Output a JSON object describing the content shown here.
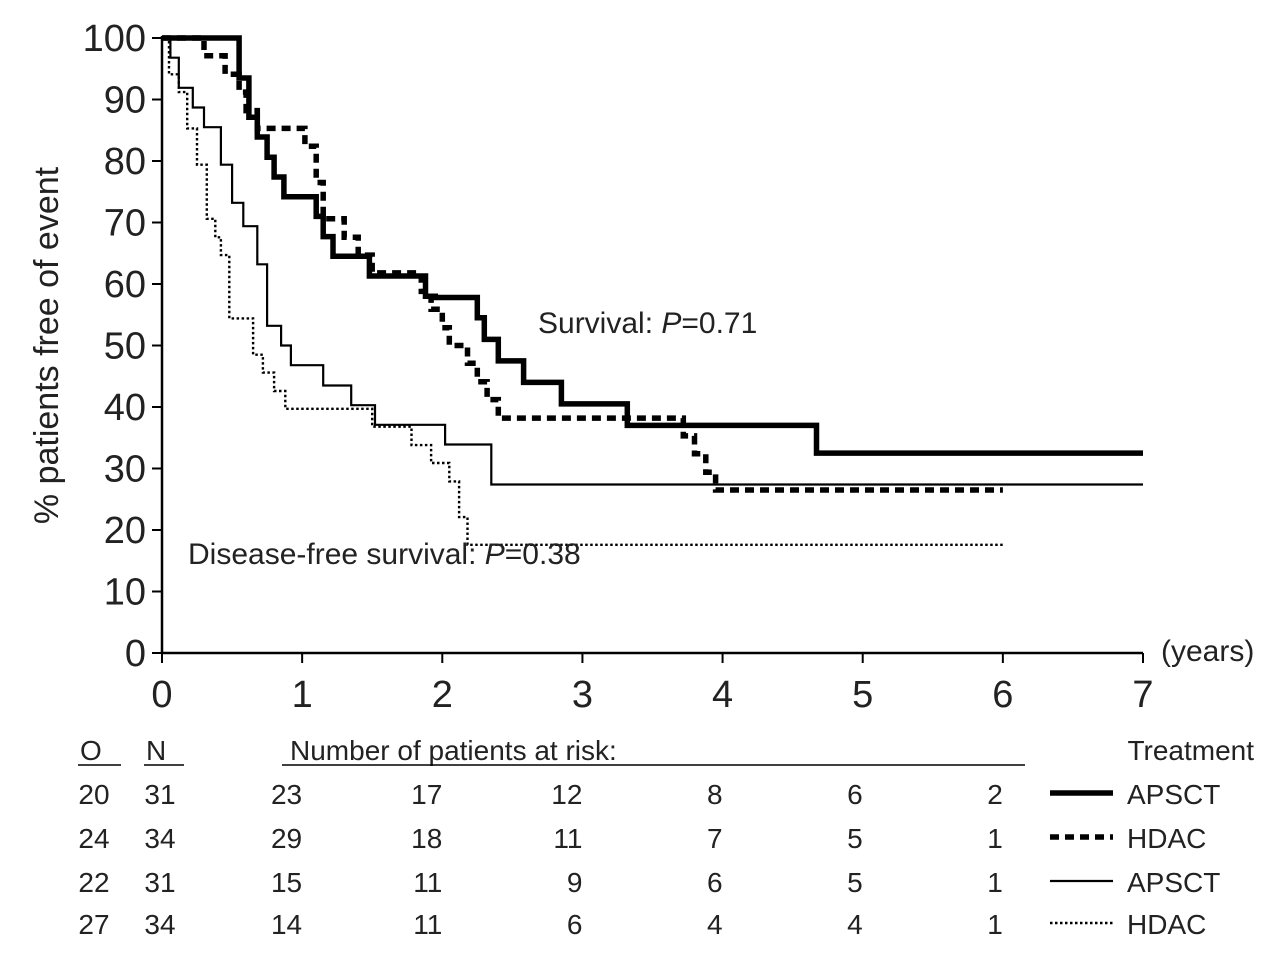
{
  "chart_data": {
    "type": "line",
    "title": "",
    "xlabel": "(years)",
    "ylabel": "% patients free of event",
    "xlim": [
      0,
      7
    ],
    "ylim": [
      0,
      100
    ],
    "xticks": [
      "0",
      "1",
      "2",
      "3",
      "4",
      "5",
      "6",
      "7"
    ],
    "yticks": [
      "0",
      "10",
      "20",
      "30",
      "40",
      "50",
      "60",
      "70",
      "80",
      "90",
      "100"
    ],
    "annotations": {
      "survival": {
        "label": "Survival: ",
        "p_symbol": "P",
        "p_value": "=0.71"
      },
      "dfs": {
        "label": "Disease-free survival: ",
        "p_symbol": "P",
        "p_value": "=0.38"
      }
    },
    "series": [
      {
        "name": "APSCT",
        "endpoint": "Survival",
        "style": "thick-solid",
        "color": "#000000",
        "x": [
          0,
          0.55,
          0.55,
          0.62,
          0.62,
          0.68,
          0.68,
          0.75,
          0.75,
          0.8,
          0.8,
          0.87,
          0.87,
          1.1,
          1.1,
          1.15,
          1.15,
          1.22,
          1.22,
          1.48,
          1.48,
          1.88,
          1.88,
          1.95,
          1.95,
          2.25,
          2.25,
          2.3,
          2.3,
          2.4,
          2.4,
          2.58,
          2.58,
          2.85,
          2.85,
          3.32,
          3.32,
          4.67,
          4.67,
          7.0
        ],
        "y": [
          100,
          100,
          93.5,
          93.5,
          87.1,
          87.1,
          83.9,
          83.9,
          80.6,
          80.6,
          77.4,
          77.4,
          74.2,
          74.2,
          71,
          71,
          67.7,
          67.7,
          64.5,
          64.5,
          61.3,
          61.3,
          58,
          58,
          57.8,
          57.8,
          54.5,
          54.5,
          51,
          51,
          47.5,
          47.5,
          44,
          44,
          40.5,
          40.5,
          37,
          37,
          32.5,
          32.5
        ]
      },
      {
        "name": "HDAC",
        "endpoint": "Survival",
        "style": "thick-dashed",
        "color": "#000000",
        "x": [
          0,
          0.3,
          0.3,
          0.45,
          0.45,
          0.55,
          0.55,
          0.6,
          0.6,
          0.68,
          0.68,
          0.8,
          0.8,
          1.02,
          1.02,
          1.1,
          1.1,
          1.15,
          1.15,
          1.3,
          1.3,
          1.4,
          1.4,
          1.5,
          1.5,
          1.7,
          1.7,
          1.85,
          1.85,
          1.92,
          1.92,
          2.0,
          2.0,
          2.05,
          2.05,
          2.12,
          2.12,
          2.18,
          2.18,
          2.25,
          2.25,
          2.32,
          2.32,
          2.4,
          2.4,
          2.5,
          2.5,
          3.72,
          3.72,
          3.8,
          3.8,
          3.88,
          3.88,
          3.95,
          3.95,
          6.0
        ],
        "y": [
          100,
          100,
          97.1,
          97.1,
          94.1,
          94.1,
          91.2,
          91.2,
          88.2,
          88.2,
          85.3,
          85.3,
          85.3,
          85.3,
          82.4,
          82.4,
          76.5,
          76.5,
          70.6,
          70.6,
          67.6,
          67.6,
          64.7,
          64.7,
          61.8,
          61.8,
          61.8,
          61.8,
          58.8,
          58.8,
          55.9,
          55.9,
          52.9,
          52.9,
          50,
          50,
          50,
          50,
          47.1,
          47.1,
          44.1,
          44.1,
          41.2,
          41.2,
          38.2,
          38.2,
          38.2,
          38.2,
          35.3,
          35.3,
          32.4,
          32.4,
          29.4,
          29.4,
          26.5,
          26.5
        ]
      },
      {
        "name": "APSCT",
        "endpoint": "Disease-free survival",
        "style": "thin-solid",
        "color": "#000000",
        "x": [
          0,
          0.06,
          0.06,
          0.12,
          0.12,
          0.22,
          0.22,
          0.3,
          0.3,
          0.42,
          0.42,
          0.5,
          0.5,
          0.58,
          0.58,
          0.68,
          0.68,
          0.75,
          0.75,
          0.85,
          0.85,
          0.92,
          0.92,
          1.15,
          1.15,
          1.35,
          1.35,
          1.52,
          1.52,
          2.02,
          2.02,
          2.35,
          2.35,
          7.0
        ],
        "y": [
          100,
          100,
          96.8,
          96.8,
          91.9,
          91.9,
          88.7,
          88.7,
          85.5,
          85.5,
          79.4,
          79.4,
          73.2,
          73.2,
          69.4,
          69.4,
          63.2,
          63.2,
          53.2,
          53.2,
          50,
          50,
          46.8,
          46.8,
          43.5,
          43.5,
          40.3,
          40.3,
          37.1,
          37.1,
          33.9,
          33.9,
          27.4,
          27.4
        ]
      },
      {
        "name": "HDAC",
        "endpoint": "Disease-free survival",
        "style": "thin-dotted",
        "color": "#000000",
        "x": [
          0,
          0.05,
          0.05,
          0.12,
          0.12,
          0.18,
          0.18,
          0.25,
          0.25,
          0.32,
          0.32,
          0.38,
          0.38,
          0.42,
          0.42,
          0.48,
          0.48,
          0.55,
          0.55,
          0.65,
          0.65,
          0.72,
          0.72,
          0.8,
          0.8,
          0.88,
          0.88,
          1.5,
          1.5,
          1.78,
          1.78,
          1.92,
          1.92,
          2.05,
          2.05,
          2.12,
          2.12,
          2.18,
          2.18,
          3.9,
          3.9,
          6.0
        ],
        "y": [
          100,
          100,
          94.1,
          94.1,
          91.2,
          91.2,
          85.3,
          85.3,
          79.4,
          79.4,
          70.6,
          70.6,
          67.6,
          67.6,
          64.7,
          64.7,
          54.4,
          54.4,
          54.4,
          54.4,
          48.5,
          48.5,
          45.6,
          45.6,
          42.6,
          42.6,
          39.7,
          39.7,
          36.8,
          36.8,
          33.8,
          33.8,
          30.9,
          30.9,
          27.9,
          27.9,
          22.1,
          22.1,
          17.6,
          17.6,
          17.6,
          17.6
        ]
      }
    ],
    "risk_table": {
      "title": "Number of patients at risk:",
      "col_o": "O",
      "col_n": "N",
      "treatment_header": "Treatment",
      "rows": [
        {
          "o": "20",
          "n": "31",
          "at_risk": [
            "23",
            "17",
            "12",
            "8",
            "6",
            "2"
          ],
          "treatment": "APSCT",
          "line_style": "thick-solid"
        },
        {
          "o": "24",
          "n": "34",
          "at_risk": [
            "29",
            "18",
            "11",
            "7",
            "5",
            "1"
          ],
          "treatment": "HDAC",
          "line_style": "thick-dashed"
        },
        {
          "o": "22",
          "n": "31",
          "at_risk": [
            "15",
            "11",
            "9",
            "6",
            "5",
            "1"
          ],
          "treatment": "APSCT",
          "line_style": "thin-solid"
        },
        {
          "o": "27",
          "n": "34",
          "at_risk": [
            "14",
            "11",
            "6",
            "4",
            "4",
            "1"
          ],
          "treatment": "HDAC",
          "line_style": "thin-dotted"
        }
      ]
    }
  }
}
